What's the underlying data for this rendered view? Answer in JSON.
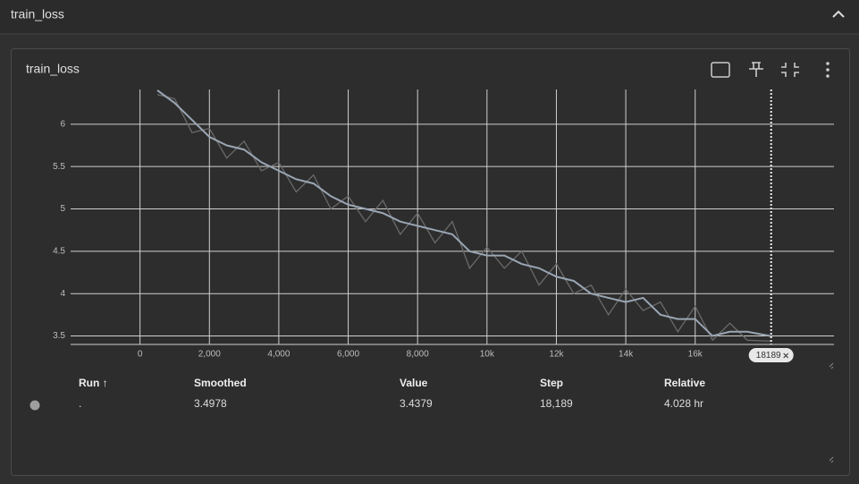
{
  "header": {
    "title": "train_loss"
  },
  "card": {
    "title": "train_loss"
  },
  "chart_data": {
    "type": "line",
    "xlim": [
      -2000,
      20000
    ],
    "ylim": [
      3.4,
      6.41
    ],
    "xticks": [
      0,
      {
        "value": 2000,
        "label": "2,000"
      },
      {
        "value": 4000,
        "label": "4,000"
      },
      {
        "value": 6000,
        "label": "6,000"
      },
      {
        "value": 8000,
        "label": "8,000"
      },
      {
        "value": 10000,
        "label": "10k"
      },
      {
        "value": 12000,
        "label": "12k"
      },
      {
        "value": 14000,
        "label": "14k"
      },
      {
        "value": 16000,
        "label": "16k"
      }
    ],
    "yticks": [
      3.5,
      4,
      4.5,
      5,
      5.5,
      6
    ],
    "grid": true,
    "x": [
      500,
      1000,
      1500,
      2000,
      2500,
      3000,
      3500,
      4000,
      4500,
      5000,
      5500,
      6000,
      6500,
      7000,
      7500,
      8000,
      8500,
      9000,
      9500,
      10000,
      10500,
      11000,
      11500,
      12000,
      12500,
      13000,
      13500,
      14000,
      14500,
      15000,
      15500,
      16000,
      16500,
      17000,
      17500,
      18189
    ],
    "series": [
      {
        "color": "#6a6a6a",
        "values": [
          6.35,
          6.3,
          5.9,
          5.95,
          5.6,
          5.8,
          5.45,
          5.55,
          5.2,
          5.4,
          5.0,
          5.15,
          4.85,
          5.1,
          4.7,
          4.95,
          4.6,
          4.85,
          4.3,
          4.55,
          4.3,
          4.5,
          4.1,
          4.35,
          4.0,
          4.1,
          3.75,
          4.05,
          3.8,
          3.9,
          3.55,
          3.85,
          3.45,
          3.65,
          3.45,
          3.4379
        ]
      },
      {
        "color": "#9aa6b4",
        "values": [
          6.4,
          6.25,
          6.05,
          5.85,
          5.75,
          5.7,
          5.55,
          5.45,
          5.35,
          5.3,
          5.15,
          5.05,
          5.0,
          4.95,
          4.85,
          4.8,
          4.75,
          4.7,
          4.5,
          4.45,
          4.45,
          4.35,
          4.3,
          4.2,
          4.15,
          4.0,
          3.95,
          3.9,
          3.95,
          3.75,
          3.7,
          3.7,
          3.5,
          3.55,
          3.55,
          3.4978
        ]
      }
    ],
    "cursor": {
      "x": 18189,
      "label": "18189"
    }
  },
  "table": {
    "headers": [
      "Run ↑",
      "Smoothed",
      "Value",
      "Step",
      "Relative"
    ],
    "rows": [
      [
        ".",
        "3.4978",
        "3.4379",
        "18,189",
        "4.028 hr"
      ]
    ]
  }
}
